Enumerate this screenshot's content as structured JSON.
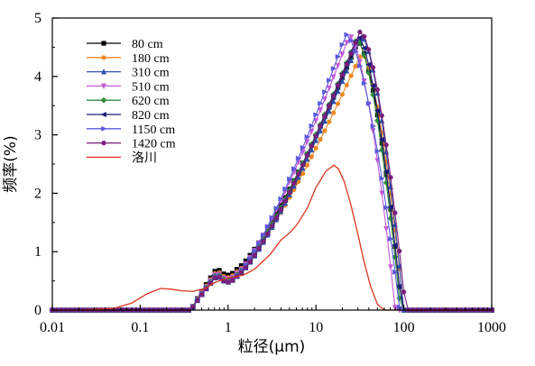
{
  "chart_data": {
    "type": "line",
    "xscale": "log",
    "xlim": [
      0.01,
      1000
    ],
    "ylim": [
      0,
      5
    ],
    "xlabel": "粒径(μm)",
    "ylabel": "频率(%)",
    "x_ticks": [
      0.01,
      0.1,
      1,
      10,
      100,
      1000
    ],
    "x_tick_labels": [
      "0.01",
      "0.1",
      "1",
      "10",
      "100",
      "1000"
    ],
    "y_ticks": [
      0,
      1,
      2,
      3,
      4,
      5
    ],
    "y_tick_labels": [
      "0",
      "1",
      "2",
      "3",
      "4",
      "5"
    ],
    "legend_position": "top-left",
    "grid": false,
    "series": [
      {
        "name": "80 cm",
        "color": "#000000",
        "marker": "square",
        "peak_x": 30,
        "peak_y": 4.6,
        "plateau_y": 0.72,
        "max_x": 95
      },
      {
        "name": "180 cm",
        "color": "#f08a24",
        "marker": "circle",
        "peak_x": 33,
        "peak_y": 4.4,
        "plateau_y": 0.68,
        "max_x": 100
      },
      {
        "name": "310 cm",
        "color": "#2b4faa",
        "marker": "triangle-up",
        "peak_x": 33,
        "peak_y": 4.7,
        "plateau_y": 0.6,
        "max_x": 100
      },
      {
        "name": "510 cm",
        "color": "#c45ad8",
        "marker": "triangle-down",
        "peak_x": 24,
        "peak_y": 4.7,
        "plateau_y": 0.65,
        "max_x": 80
      },
      {
        "name": "620 cm",
        "color": "#2e8b3c",
        "marker": "diamond",
        "peak_x": 29,
        "peak_y": 4.65,
        "plateau_y": 0.63,
        "max_x": 92
      },
      {
        "name": "820 cm",
        "color": "#1a1a7a",
        "marker": "triangle-left",
        "peak_x": 30,
        "peak_y": 4.7,
        "plateau_y": 0.6,
        "max_x": 95
      },
      {
        "name": "1150 cm",
        "color": "#5a5ad8",
        "marker": "triangle-right",
        "peak_x": 22,
        "peak_y": 4.72,
        "plateau_y": 0.62,
        "max_x": 90
      },
      {
        "name": "1420 cm",
        "color": "#7a1f7a",
        "marker": "hexagon",
        "peak_x": 32,
        "peak_y": 4.78,
        "plateau_y": 0.6,
        "max_x": 105
      },
      {
        "name": "洛川",
        "color": "#d9351f",
        "marker": "none",
        "x": [
          0.02,
          0.05,
          0.08,
          0.12,
          0.17,
          0.22,
          0.3,
          0.4,
          0.55,
          0.7,
          0.9,
          1.1,
          1.5,
          2,
          3,
          4,
          5,
          6,
          8,
          10,
          13,
          16,
          18,
          21,
          25,
          30,
          35,
          42,
          50,
          60
        ],
        "y": [
          0,
          0.03,
          0.12,
          0.28,
          0.37,
          0.36,
          0.33,
          0.32,
          0.37,
          0.47,
          0.53,
          0.56,
          0.6,
          0.7,
          0.95,
          1.2,
          1.32,
          1.45,
          1.75,
          2.1,
          2.38,
          2.48,
          2.42,
          2.2,
          1.8,
          1.3,
          0.85,
          0.4,
          0.1,
          0
        ]
      }
    ]
  }
}
